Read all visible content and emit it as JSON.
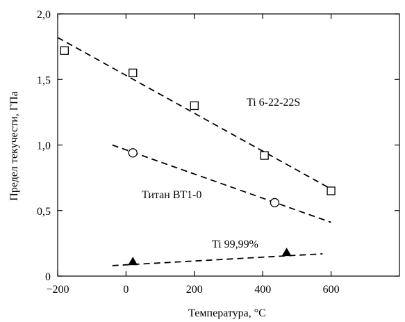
{
  "chart_data": {
    "type": "scatter",
    "title": "",
    "xlabel": "Температура, °C",
    "ylabel": "Предел текучести, ГПа",
    "xlim": [
      -200,
      800
    ],
    "ylim": [
      0,
      2.0
    ],
    "x_ticks": [
      -200,
      0,
      200,
      400,
      600
    ],
    "x_tick_labels": [
      "−200",
      "0",
      "200",
      "400",
      "600"
    ],
    "y_ticks": [
      0,
      0.5,
      1.0,
      1.5,
      2.0
    ],
    "y_tick_labels": [
      "0",
      "0,5",
      "1,0",
      "1,5",
      "2,0"
    ],
    "grid": false,
    "legend": "none",
    "series": [
      {
        "name": "Ti 6-22-22S",
        "marker": "open-square",
        "points": [
          {
            "x": -180,
            "y": 1.72
          },
          {
            "x": 20,
            "y": 1.55
          },
          {
            "x": 200,
            "y": 1.3
          },
          {
            "x": 405,
            "y": 0.92
          },
          {
            "x": 600,
            "y": 0.65
          }
        ],
        "trend": [
          {
            "x": -200,
            "y": 1.82
          },
          {
            "x": 610,
            "y": 0.65
          }
        ]
      },
      {
        "name": "Титан ВТ1-0",
        "marker": "open-circle",
        "points": [
          {
            "x": 20,
            "y": 0.94
          },
          {
            "x": 435,
            "y": 0.56
          }
        ],
        "trend": [
          {
            "x": -40,
            "y": 1.0
          },
          {
            "x": 600,
            "y": 0.41
          }
        ]
      },
      {
        "name": "Ti 99,99%",
        "marker": "filled-triangle",
        "points": [
          {
            "x": 20,
            "y": 0.11
          },
          {
            "x": 470,
            "y": 0.18
          }
        ],
        "trend": [
          {
            "x": -40,
            "y": 0.08
          },
          {
            "x": 575,
            "y": 0.17
          }
        ]
      }
    ],
    "colors": {
      "ink": "#000000",
      "background": "#ffffff"
    }
  }
}
